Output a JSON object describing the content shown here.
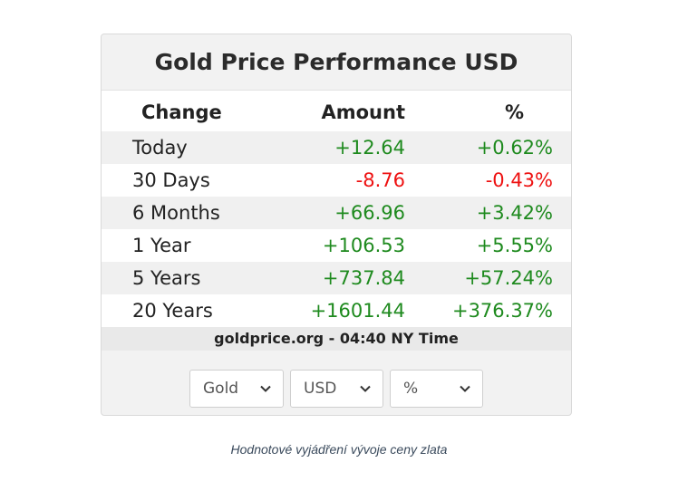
{
  "widget": {
    "title": "Gold Price Performance USD",
    "headers": {
      "change": "Change",
      "amount": "Amount",
      "percent": "%"
    },
    "rows": [
      {
        "label": "Today",
        "amount": "+12.64",
        "percent": "+0.62%",
        "trend": "up"
      },
      {
        "label": "30 Days",
        "amount": "-8.76",
        "percent": "-0.43%",
        "trend": "down"
      },
      {
        "label": "6 Months",
        "amount": "+66.96",
        "percent": "+3.42%",
        "trend": "up"
      },
      {
        "label": "1 Year",
        "amount": "+106.53",
        "percent": "+5.55%",
        "trend": "up"
      },
      {
        "label": "5 Years",
        "amount": "+737.84",
        "percent": "+57.24%",
        "trend": "up"
      },
      {
        "label": "20 Years",
        "amount": "+1601.44",
        "percent": "+376.37%",
        "trend": "up"
      }
    ],
    "source_note": "goldprice.org - 04:40 NY Time",
    "selects": {
      "metal": "Gold",
      "currency": "USD",
      "unit": "%"
    }
  },
  "caption": "Hodnotové vyjádření vývoje ceny zlata",
  "colors": {
    "positive": "#1e8a1e",
    "negative": "#ee1111"
  }
}
